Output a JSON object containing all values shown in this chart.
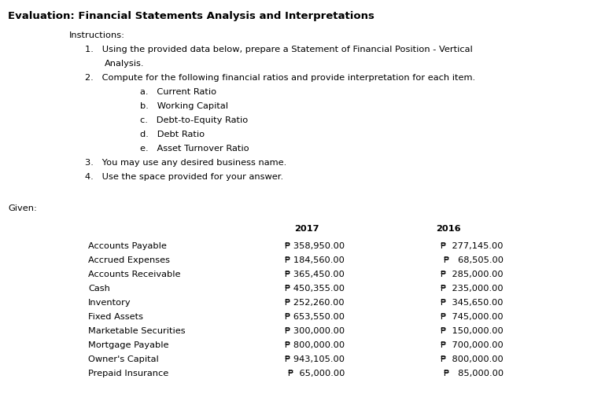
{
  "title": "Evaluation: Financial Statements Analysis and Interpretations",
  "given_label": "Given:",
  "col_headers": [
    "2017",
    "2016"
  ],
  "row_labels": [
    "Accounts Payable",
    "Accrued Expenses",
    "Accounts Receivable",
    "Cash",
    "Inventory",
    "Fixed Assets",
    "Marketable Securities",
    "Mortgage Payable",
    "Owner's Capital",
    "Prepaid Insurance"
  ],
  "col2017": [
    "₱ 358,950.00",
    "₱ 184,560.00",
    "₱ 365,450.00",
    "₱ 450,355.00",
    "₱ 252,260.00",
    "₱ 653,550.00",
    "₱ 300,000.00",
    "₱ 800,000.00",
    "₱ 943,105.00",
    "₱  65,000.00"
  ],
  "col2016": [
    "₱  277,145.00",
    "₱   68,505.00",
    "₱  285,000.00",
    "₱  235,000.00",
    "₱  345,650.00",
    "₱  745,000.00",
    "₱  150,000.00",
    "₱  700,000.00",
    "₱  800,000.00",
    "₱   85,000.00"
  ],
  "bg_color": "#ffffff",
  "text_color": "#000000",
  "title_fs": 9.5,
  "body_fs": 8.2
}
